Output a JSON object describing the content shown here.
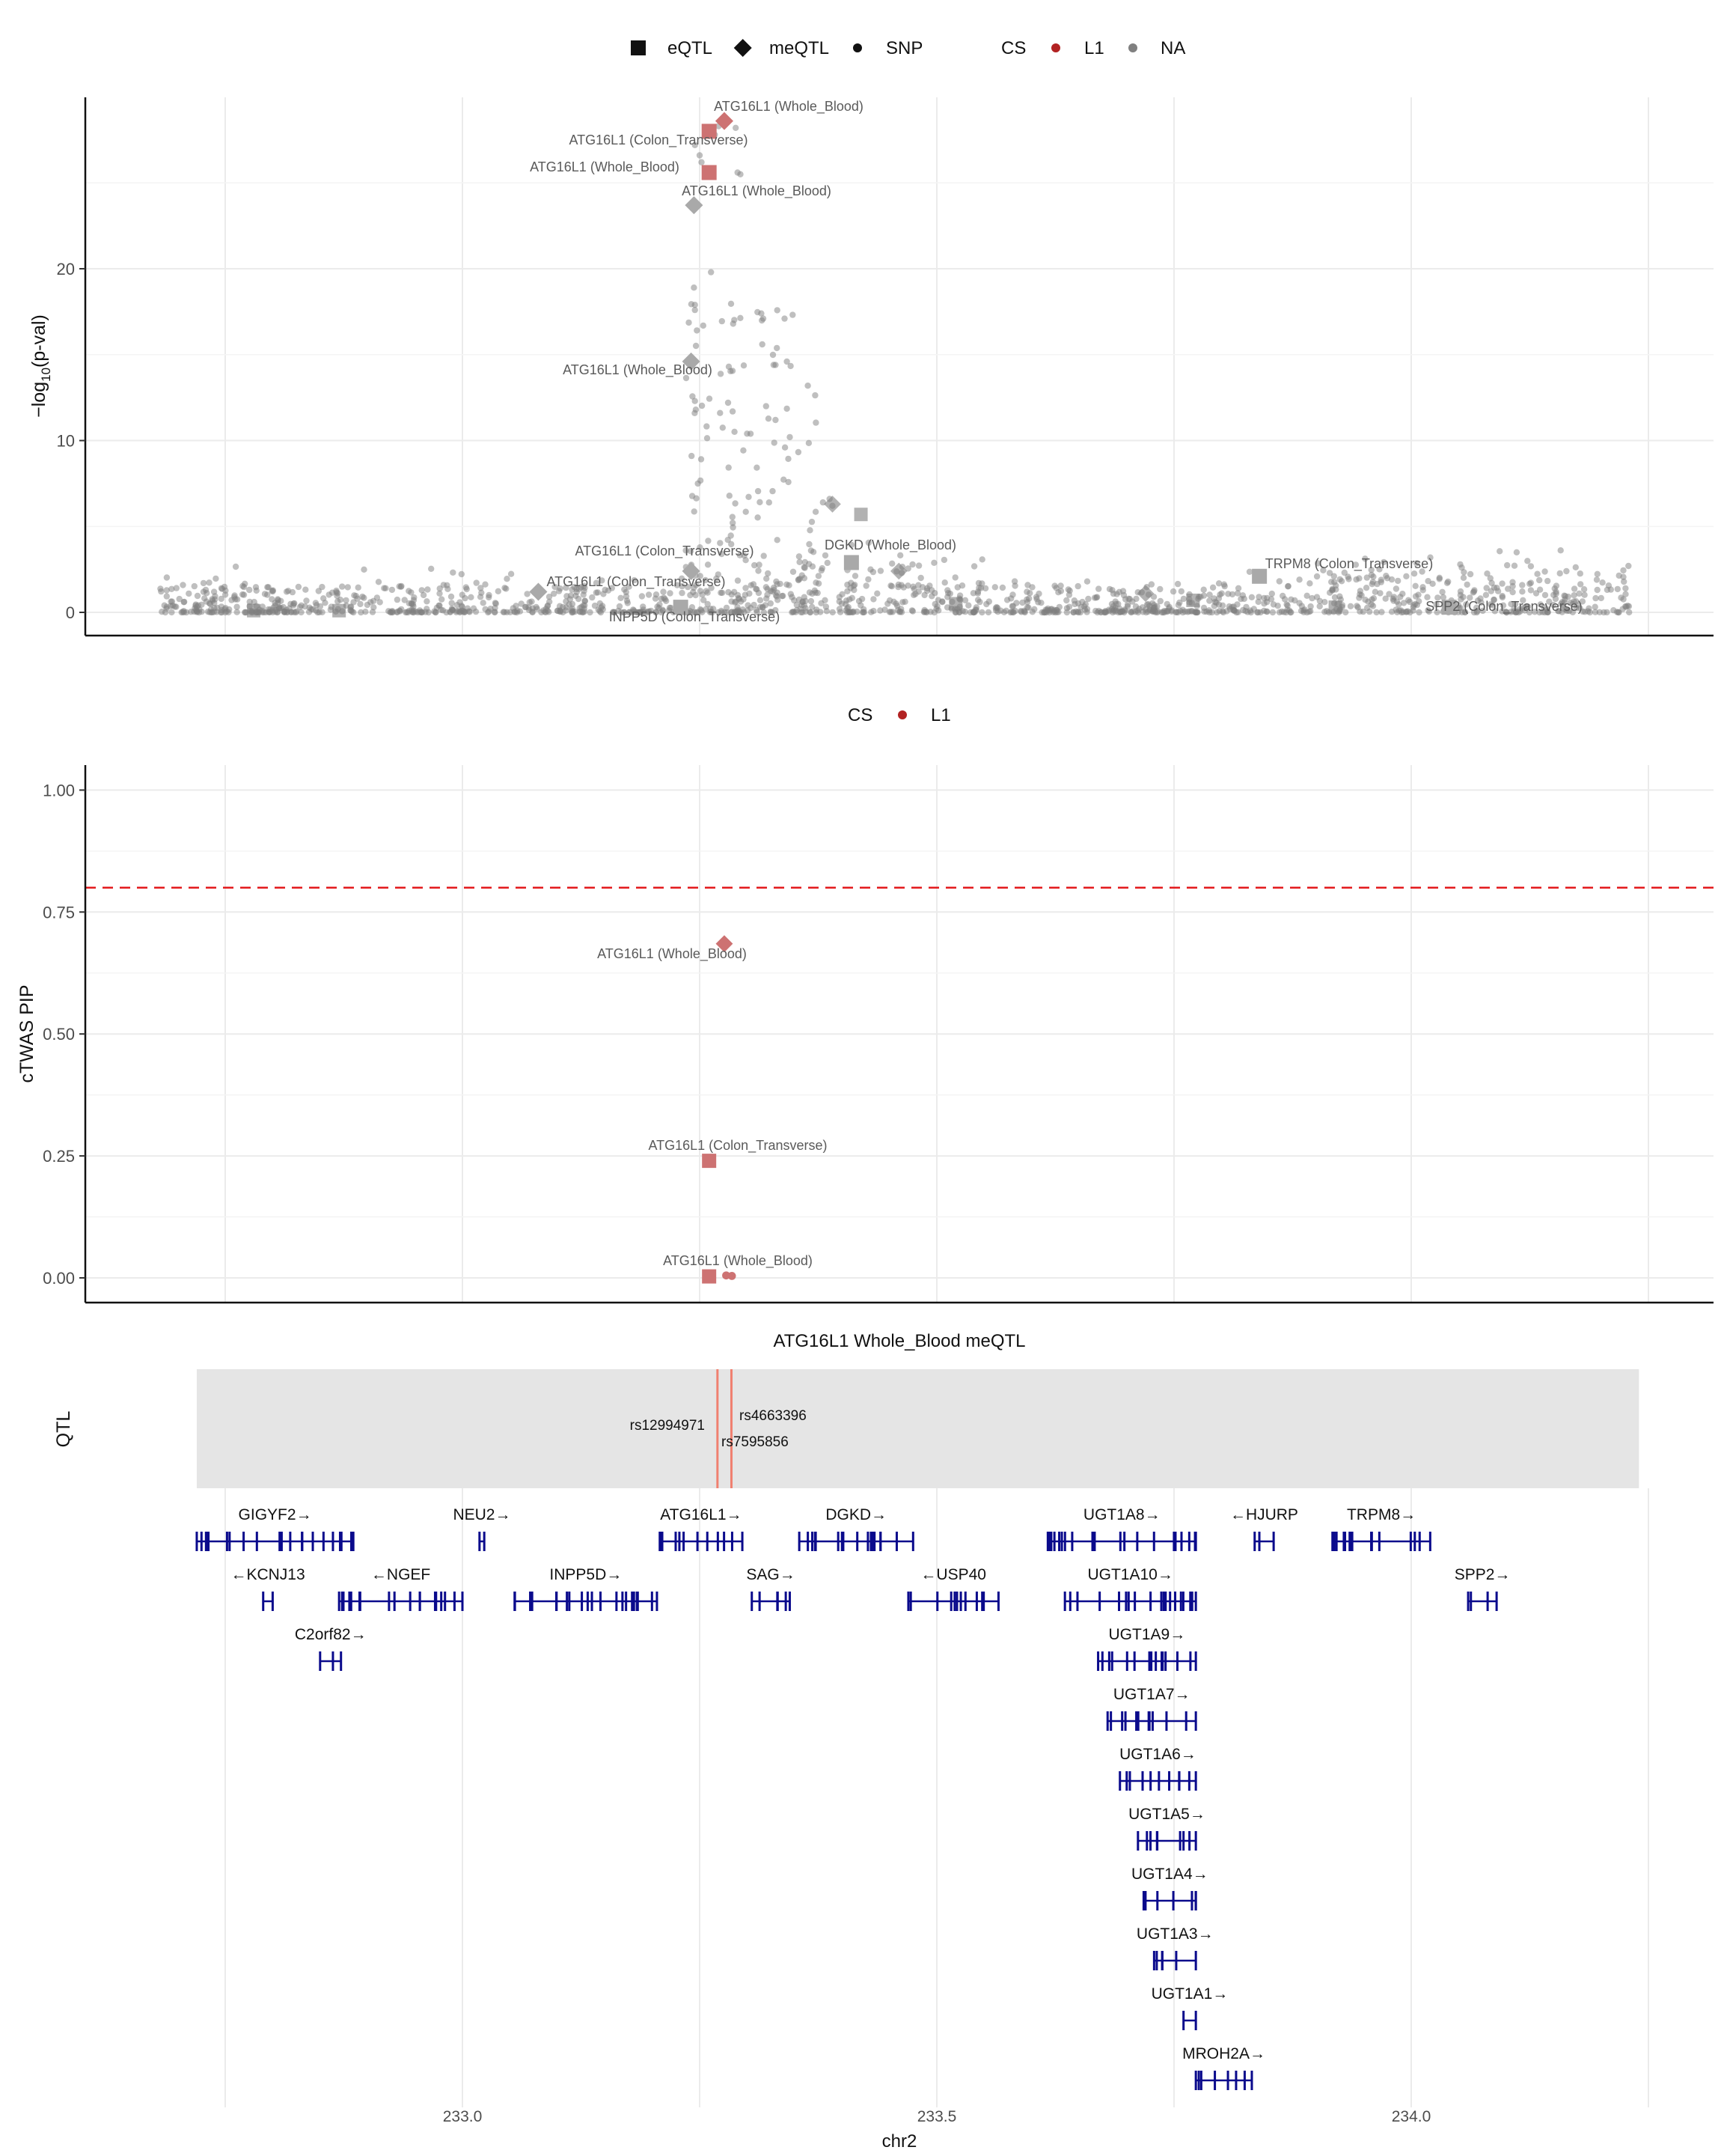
{
  "colors": {
    "L1": "#C13B3B",
    "L1_point": "#CD7272",
    "NA": "#7F7F7F",
    "threshold": "#E31A1C",
    "gene": "#0A0A8C",
    "qtl_band": "#E5E5E5",
    "qtl_line": "#F08070",
    "grid": "#EBEBEB"
  },
  "legend_top": {
    "shapes": [
      {
        "shape": "square",
        "label": "eQTL"
      },
      {
        "shape": "diamond",
        "label": "meQTL"
      },
      {
        "shape": "circle",
        "label": "SNP"
      }
    ],
    "cs_title": "CS",
    "cs": [
      {
        "key": "L1",
        "label": "L1"
      },
      {
        "key": "NA",
        "label": "NA"
      }
    ]
  },
  "legend_mid": {
    "cs_title": "CS",
    "cs": [
      {
        "key": "L1",
        "label": "L1"
      }
    ]
  },
  "chart_data": [
    {
      "type": "scatter",
      "panel": "gwas-locus",
      "ylabel": "-log10(p-val)",
      "ylabel_parts": [
        "−log",
        "10",
        "(p-val)"
      ],
      "xlim": [
        232.64,
        234.26
      ],
      "ylim": [
        -1.5,
        30
      ],
      "yticks": [
        0,
        10,
        20
      ],
      "xgrid": [
        232.75,
        233.0,
        233.25,
        233.5,
        233.75,
        234.0,
        234.25
      ],
      "genes_highlighted": [
        {
          "label": "ATG16L1 (Whole_Blood)",
          "x": 233.276,
          "y": 28.6,
          "shape": "diamond",
          "cs": "L1"
        },
        {
          "label": "ATG16L1 (Colon_Transverse)",
          "x": 233.26,
          "y": 28.0,
          "shape": "square",
          "cs": "L1"
        },
        {
          "label": "ATG16L1 (Whole_Blood)",
          "x": 233.26,
          "y": 25.6,
          "shape": "square",
          "cs": "L1"
        },
        {
          "label": "ATG16L1 (Whole_Blood)",
          "x": 233.244,
          "y": 23.7,
          "shape": "diamond",
          "cs": "NA"
        },
        {
          "label": "ATG16L1 (Whole_Blood)",
          "x": 233.241,
          "y": 14.6,
          "shape": "diamond",
          "cs": "NA"
        },
        {
          "label": "DGKD (Whole_Blood)",
          "x": 233.41,
          "y": 2.9,
          "shape": "square",
          "cs": "NA"
        },
        {
          "label": "ATG16L1 (Colon_Transverse)",
          "x": 233.241,
          "y": 2.4,
          "shape": "diamond",
          "cs": "NA"
        },
        {
          "label": "ATG16L1 (Colon_Transverse)",
          "x": 233.08,
          "y": 1.2,
          "shape": "diamond",
          "cs": "NA"
        },
        {
          "label": "INPP5D (Colon_Transverse)",
          "x": 233.23,
          "y": 0.3,
          "shape": "square",
          "cs": "NA"
        },
        {
          "label": "TRPM8 (Colon_Transverse)",
          "x": 233.84,
          "y": 2.1,
          "shape": "square",
          "cs": "NA"
        },
        {
          "label": "SPP2 (Colon_Transverse)",
          "x": 234.04,
          "y": 0.3,
          "shape": "square",
          "cs": "NA"
        }
      ],
      "label_visible": [
        "ATG16L1 (Whole_Blood)",
        "ATG16L1 (Colon_Transverse)",
        "ATG16L1 (Whole_Blood)",
        "ATG16L1 (Whole_Blood)",
        "ATG16L1 (Whole_Blood)",
        "DGKD (Whole_Blood)",
        "ATG16L1 (Colon_Transverse)",
        "ATG16L1 (Colon_Transverse)",
        "INPP5D (Colon_Transverse)",
        "TRPM8 (Colon_Transverse)",
        "SPP2 (Colon_Transverse)"
      ],
      "background_snps": "many grey points at -log10 p 0-4 across the region; a cluster rising to ~28 near 233.26"
    },
    {
      "type": "scatter",
      "panel": "ctwas-pip",
      "ylabel": "cTWAS PIP",
      "xlim": [
        232.64,
        234.26
      ],
      "ylim": [
        -0.05,
        1.05
      ],
      "yticks": [
        0.0,
        0.25,
        0.5,
        0.75,
        1.0
      ],
      "ytick_labels": [
        "0.00",
        "0.25",
        "0.50",
        "0.75",
        "1.00"
      ],
      "threshold": 0.8,
      "points": [
        {
          "label": "ATG16L1 (Whole_Blood)",
          "x": 233.276,
          "y": 0.685,
          "shape": "diamond",
          "cs": "L1"
        },
        {
          "label": "ATG16L1 (Colon_Transverse)",
          "x": 233.26,
          "y": 0.24,
          "shape": "square",
          "cs": "L1"
        },
        {
          "label": "ATG16L1 (Whole_Blood)",
          "x": 233.26,
          "y": 0.003,
          "shape": "square",
          "cs": "L1"
        },
        {
          "label": "",
          "x": 233.278,
          "y": 0.005,
          "shape": "circle",
          "cs": "L1"
        },
        {
          "label": "",
          "x": 233.284,
          "y": 0.004,
          "shape": "circle",
          "cs": "L1"
        }
      ]
    },
    {
      "type": "track",
      "panel": "qtl-gene-track",
      "title": "ATG16L1 Whole_Blood meQTL",
      "ylabel": "QTL",
      "xlabel": "chr2",
      "xlim": [
        232.64,
        234.26
      ],
      "xticks": [
        233.0,
        233.5,
        234.0
      ],
      "xtick_labels": [
        "233.0",
        "233.5",
        "234.0"
      ],
      "band": [
        232.72,
        234.24
      ],
      "qtl_snps": [
        {
          "label": "rs12994971",
          "x": 233.2688
        },
        {
          "label": "rs4663396",
          "x": 233.2835
        },
        {
          "label": "rs7595856",
          "x": 233.2835
        }
      ],
      "genes": [
        {
          "name": "GIGYF2",
          "strand": "+",
          "start": 232.72,
          "end": 232.885,
          "row": 0
        },
        {
          "name": "NEU2",
          "strand": "+",
          "start": 233.018,
          "end": 233.023,
          "row": 0
        },
        {
          "name": "ATG16L1",
          "strand": "+",
          "start": 233.208,
          "end": 233.295,
          "row": 0
        },
        {
          "name": "DGKD",
          "strand": "+",
          "start": 233.355,
          "end": 233.475,
          "row": 0
        },
        {
          "name": "UGT1A8",
          "strand": "+",
          "start": 233.617,
          "end": 233.773,
          "row": 0
        },
        {
          "name": "HJURP",
          "strand": "-",
          "start": 233.835,
          "end": 233.855,
          "row": 0
        },
        {
          "name": "TRPM8",
          "strand": "+",
          "start": 233.917,
          "end": 234.02,
          "row": 0
        },
        {
          "name": "KCNJ13",
          "strand": "-",
          "start": 232.79,
          "end": 232.8,
          "row": 1
        },
        {
          "name": "NGEF",
          "strand": "-",
          "start": 232.87,
          "end": 233.0,
          "row": 1
        },
        {
          "name": "INPP5D",
          "strand": "+",
          "start": 233.055,
          "end": 233.205,
          "row": 1
        },
        {
          "name": "SAG",
          "strand": "+",
          "start": 233.305,
          "end": 233.345,
          "row": 1
        },
        {
          "name": "USP40",
          "strand": "-",
          "start": 233.47,
          "end": 233.565,
          "row": 1
        },
        {
          "name": "UGT1A10",
          "strand": "+",
          "start": 233.635,
          "end": 233.773,
          "row": 1
        },
        {
          "name": "SPP2",
          "strand": "+",
          "start": 234.06,
          "end": 234.09,
          "row": 1
        },
        {
          "name": "C2orf82",
          "strand": "+",
          "start": 232.85,
          "end": 232.872,
          "row": 2
        },
        {
          "name": "UGT1A9",
          "strand": "+",
          "start": 233.67,
          "end": 233.773,
          "row": 2
        },
        {
          "name": "UGT1A7",
          "strand": "+",
          "start": 233.68,
          "end": 233.773,
          "row": 3
        },
        {
          "name": "UGT1A6",
          "strand": "+",
          "start": 233.693,
          "end": 233.773,
          "row": 4
        },
        {
          "name": "UGT1A5",
          "strand": "+",
          "start": 233.712,
          "end": 233.773,
          "row": 5
        },
        {
          "name": "UGT1A4",
          "strand": "+",
          "start": 233.718,
          "end": 233.773,
          "row": 6
        },
        {
          "name": "UGT1A3",
          "strand": "+",
          "start": 233.729,
          "end": 233.773,
          "row": 7
        },
        {
          "name": "UGT1A1",
          "strand": "+",
          "start": 233.76,
          "end": 233.773,
          "row": 8
        },
        {
          "name": "MROH2A",
          "strand": "+",
          "start": 233.773,
          "end": 233.832,
          "row": 9
        }
      ]
    }
  ]
}
